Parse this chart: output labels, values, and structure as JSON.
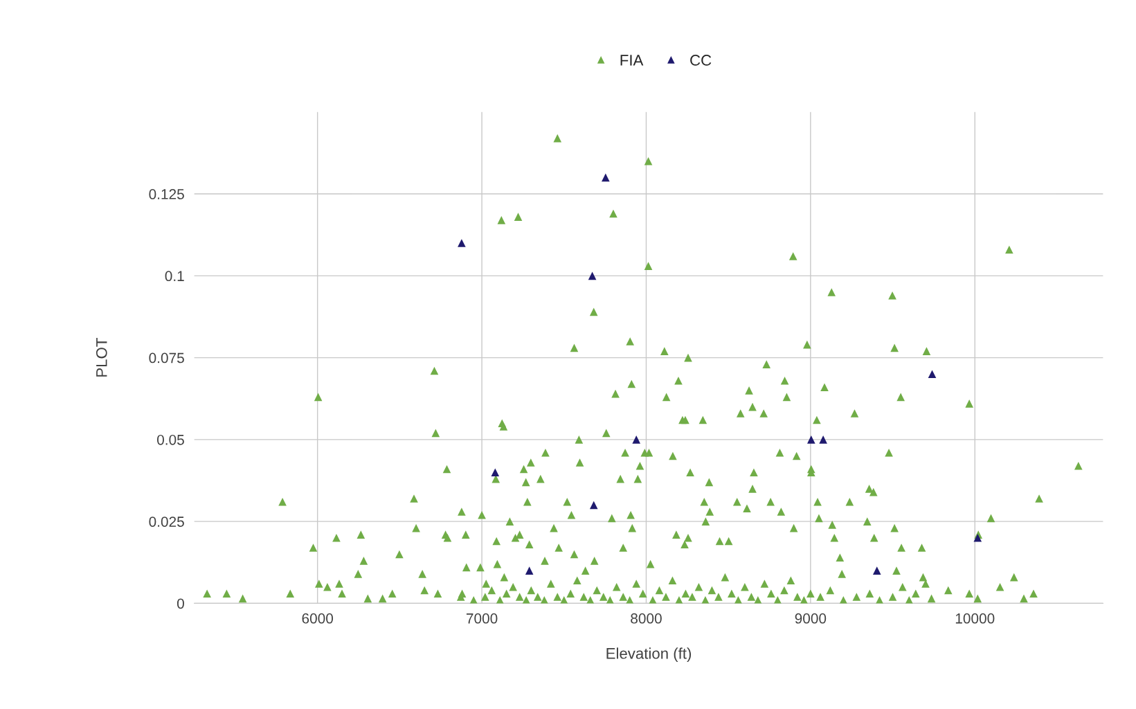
{
  "chart_data": {
    "type": "scatter",
    "xlabel": "Elevation (ft)",
    "ylabel": "PLOT",
    "xlim": [
      5250,
      10780
    ],
    "ylim": [
      0,
      0.15
    ],
    "xticks": [
      6000,
      7000,
      8000,
      9000,
      10000
    ],
    "yticks": [
      0,
      0.025,
      0.05,
      0.075,
      0.1,
      0.125
    ],
    "grid": true,
    "legend": "top",
    "marker": "triangle",
    "series": [
      {
        "name": "FIA",
        "color": "#70ad47",
        "x": [
          5328,
          5447,
          5545,
          5787,
          5834,
          5974,
          6004,
          6009,
          6060,
          6115,
          6132,
          6149,
          6264,
          6247,
          6281,
          6306,
          6396,
          6455,
          6498,
          6587,
          6600,
          6638,
          6651,
          6711,
          6719,
          6732,
          6787,
          6779,
          6791,
          6877,
          6872,
          6902,
          6906,
          7000,
          6991,
          7026,
          7085,
          7089,
          7094,
          7119,
          7123,
          7132,
          7136,
          7170,
          7204,
          7221,
          7230,
          7255,
          7268,
          7277,
          7289,
          7298,
          7357,
          7387,
          7383,
          7438,
          7460,
          7468,
          7519,
          7545,
          7562,
          7591,
          7596,
          7562,
          7630,
          7681,
          7685,
          7757,
          7800,
          7813,
          7791,
          7843,
          7860,
          7872,
          7902,
          7911,
          7906,
          7915,
          7949,
          7962,
          7991,
          8013,
          8013,
          8017,
          8026,
          8111,
          8123,
          8162,
          8183,
          8196,
          8221,
          8238,
          8255,
          8268,
          8234,
          8255,
          8345,
          8353,
          8362,
          8383,
          8387,
          8447,
          8502,
          8553,
          8574,
          8626,
          8647,
          8655,
          8647,
          8613,
          8715,
          8732,
          8757,
          8821,
          8843,
          8855,
          8813,
          8894,
          8915,
          8898,
          8979,
          9004,
          9004,
          9038,
          9043,
          9051,
          9085,
          9128,
          9132,
          9145,
          9179,
          9191,
          9238,
          9268,
          9345,
          9357,
          9383,
          9387,
          9477,
          9498,
          9511,
          9511,
          9549,
          9553,
          9523,
          9706,
          9677,
          9685,
          9966,
          10021,
          10098,
          10153,
          10209,
          10238,
          10298,
          10357,
          10391,
          10630,
          9966,
          9838,
          9736,
          10017,
          6880,
          6950,
          7020,
          7060,
          7110,
          7150,
          7190,
          7230,
          7270,
          7300,
          7340,
          7380,
          7420,
          7460,
          7500,
          7540,
          7580,
          7620,
          7660,
          7700,
          7740,
          7780,
          7820,
          7860,
          7900,
          7940,
          7980,
          8040,
          8080,
          8120,
          8160,
          8200,
          8240,
          8280,
          8320,
          8360,
          8400,
          8440,
          8480,
          8520,
          8560,
          8600,
          8640,
          8680,
          8720,
          8760,
          8800,
          8840,
          8880,
          8920,
          8960,
          9000,
          9060,
          9120,
          9200,
          9280,
          9360,
          9420,
          9500,
          9560,
          9600,
          9640,
          9700
        ],
        "values": [
          0.003,
          0.003,
          0.0015,
          0.031,
          0.003,
          0.017,
          0.063,
          0.006,
          0.005,
          0.02,
          0.006,
          0.003,
          0.021,
          0.009,
          0.013,
          0.0015,
          0.0015,
          0.003,
          0.015,
          0.032,
          0.023,
          0.009,
          0.004,
          0.071,
          0.052,
          0.003,
          0.041,
          0.021,
          0.02,
          0.028,
          0.002,
          0.021,
          0.011,
          0.027,
          0.011,
          0.006,
          0.038,
          0.019,
          0.012,
          0.117,
          0.055,
          0.054,
          0.008,
          0.025,
          0.02,
          0.118,
          0.021,
          0.041,
          0.037,
          0.031,
          0.018,
          0.043,
          0.038,
          0.046,
          0.013,
          0.023,
          0.142,
          0.017,
          0.031,
          0.027,
          0.078,
          0.05,
          0.043,
          0.015,
          0.01,
          0.089,
          0.013,
          0.052,
          0.119,
          0.064,
          0.026,
          0.038,
          0.017,
          0.046,
          0.08,
          0.067,
          0.027,
          0.023,
          0.038,
          0.042,
          0.046,
          0.103,
          0.135,
          0.046,
          0.012,
          0.077,
          0.063,
          0.045,
          0.021,
          0.068,
          0.056,
          0.056,
          0.075,
          0.04,
          0.018,
          0.02,
          0.056,
          0.031,
          0.025,
          0.037,
          0.028,
          0.019,
          0.019,
          0.031,
          0.058,
          0.065,
          0.06,
          0.04,
          0.035,
          0.029,
          0.058,
          0.073,
          0.031,
          0.028,
          0.068,
          0.063,
          0.046,
          0.106,
          0.045,
          0.023,
          0.079,
          0.041,
          0.04,
          0.056,
          0.031,
          0.026,
          0.066,
          0.095,
          0.024,
          0.02,
          0.014,
          0.009,
          0.031,
          0.058,
          0.025,
          0.035,
          0.034,
          0.02,
          0.046,
          0.094,
          0.078,
          0.023,
          0.063,
          0.017,
          0.01,
          0.077,
          0.017,
          0.008,
          0.061,
          0.021,
          0.026,
          0.005,
          0.108,
          0.008,
          0.0015,
          0.003,
          0.032,
          0.042,
          0.003,
          0.004,
          0.0015,
          0.0015,
          0.003,
          0.001,
          0.002,
          0.004,
          0.001,
          0.003,
          0.005,
          0.002,
          0.001,
          0.004,
          0.002,
          0.001,
          0.006,
          0.002,
          0.001,
          0.003,
          0.007,
          0.002,
          0.001,
          0.004,
          0.002,
          0.001,
          0.005,
          0.002,
          0.001,
          0.006,
          0.003,
          0.001,
          0.004,
          0.002,
          0.007,
          0.001,
          0.003,
          0.002,
          0.005,
          0.001,
          0.004,
          0.002,
          0.008,
          0.003,
          0.001,
          0.005,
          0.002,
          0.001,
          0.006,
          0.003,
          0.001,
          0.004,
          0.007,
          0.002,
          0.001,
          0.003,
          0.002,
          0.004,
          0.001,
          0.002,
          0.003,
          0.001,
          0.002,
          0.005,
          0.001,
          0.003,
          0.006
        ]
      },
      {
        "name": "CC",
        "color": "#1f1a6e",
        "x": [
          6877,
          7753,
          7672,
          7081,
          7289,
          7681,
          7940,
          9004,
          9077,
          9740,
          9404,
          10017
        ],
        "values": [
          0.11,
          0.13,
          0.1,
          0.04,
          0.01,
          0.03,
          0.05,
          0.05,
          0.05,
          0.07,
          0.01,
          0.02
        ]
      }
    ]
  }
}
